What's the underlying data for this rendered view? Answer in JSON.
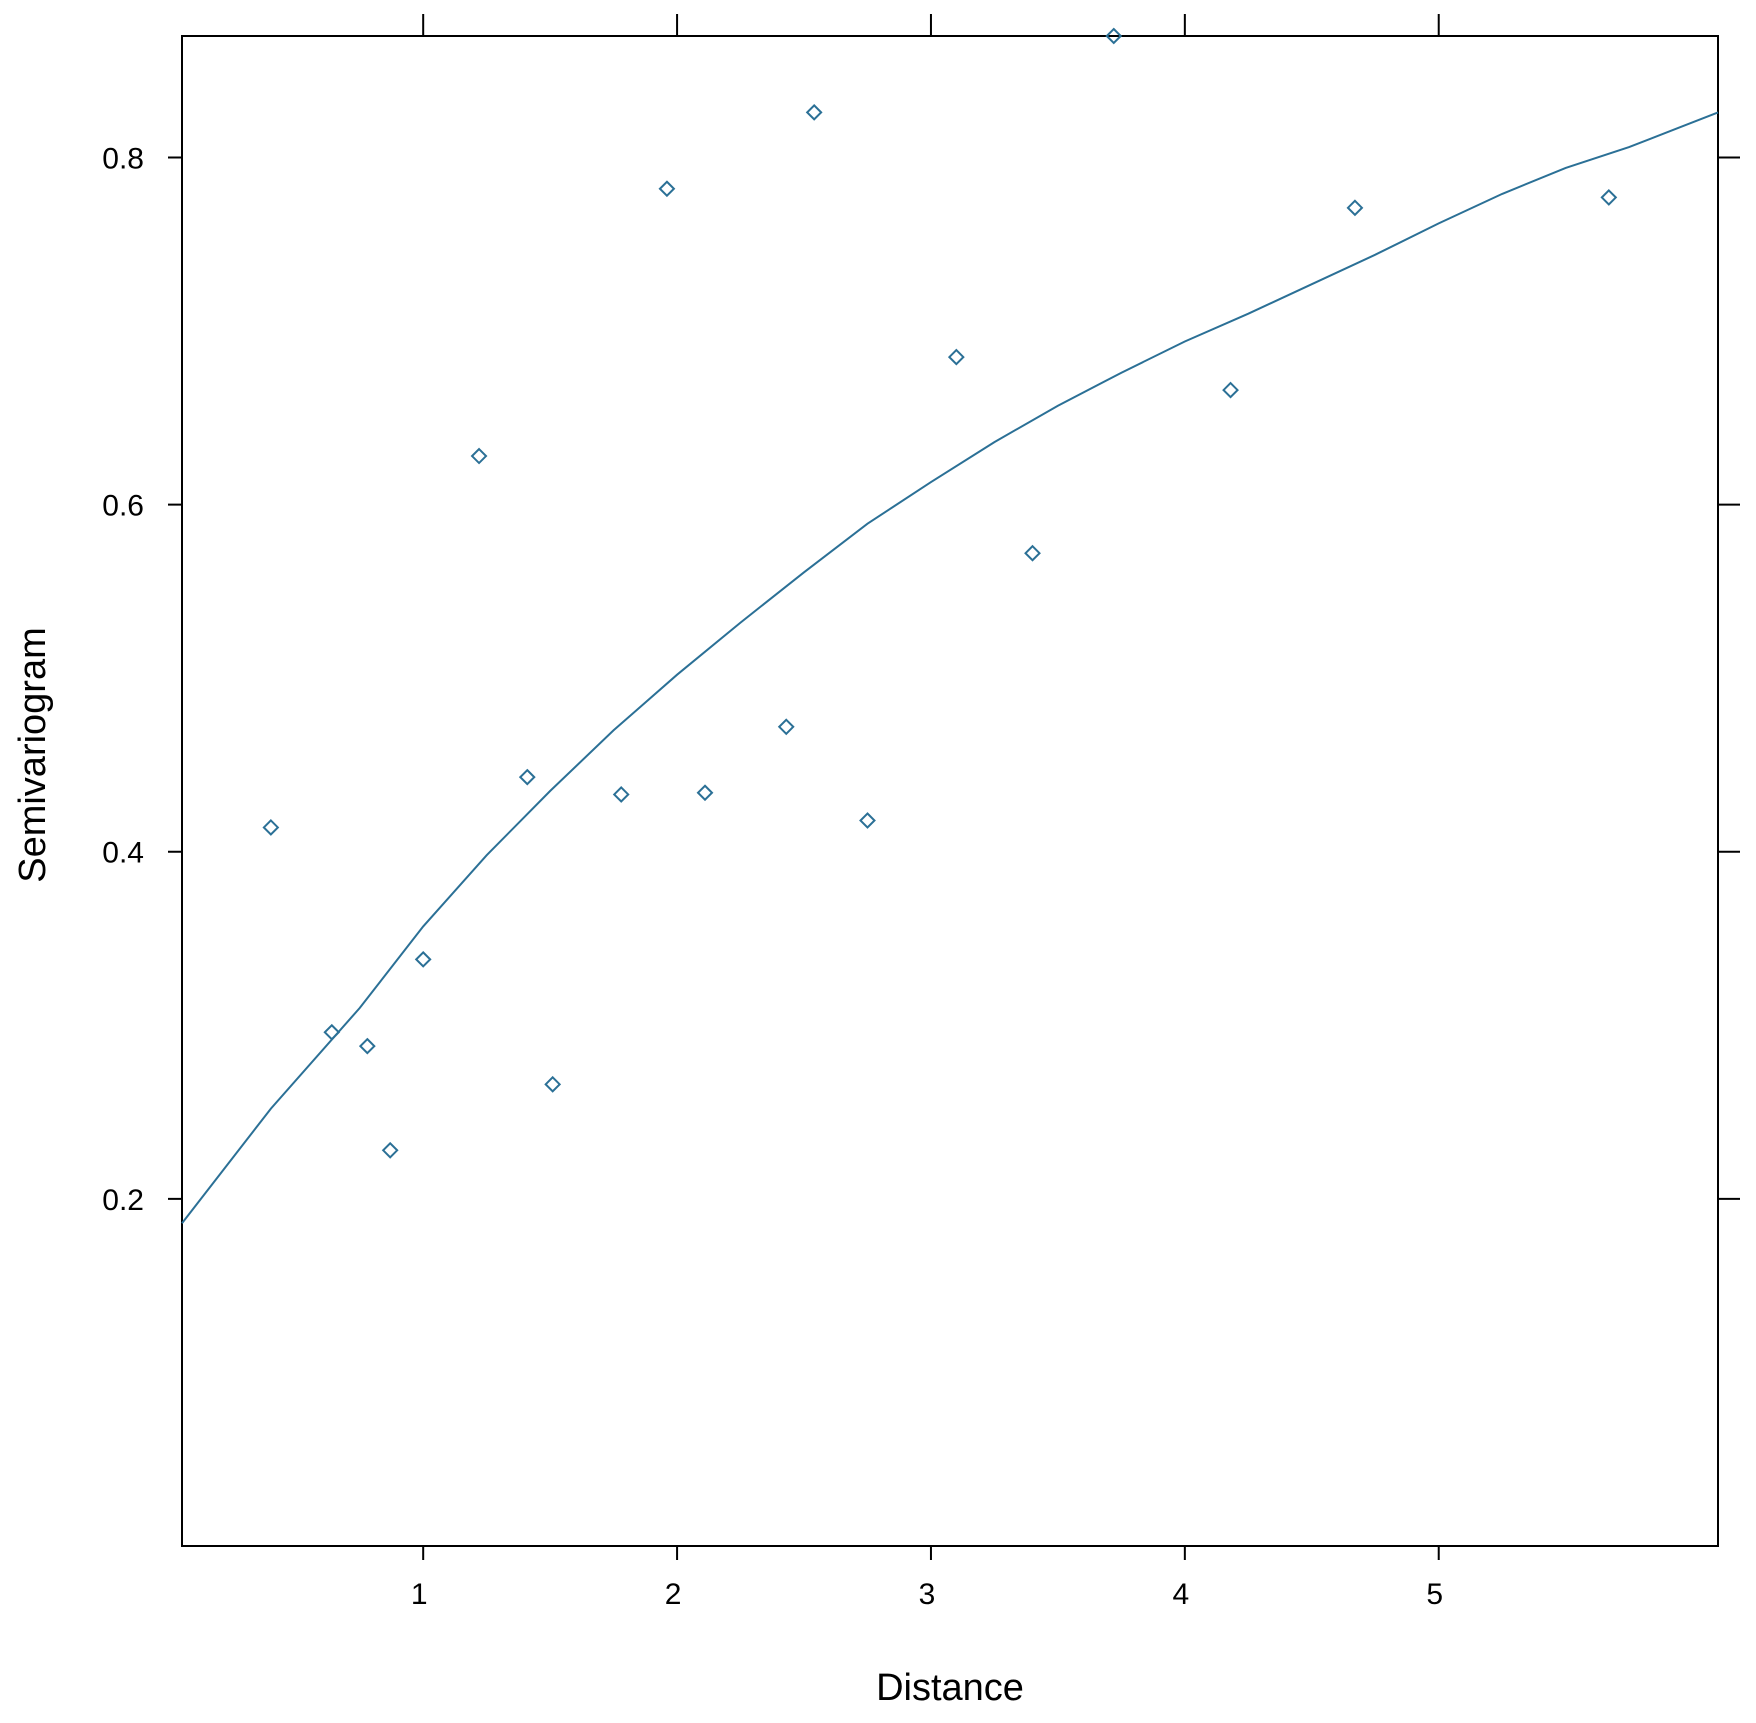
{
  "chart_data": {
    "type": "scatter",
    "xlabel": "Distance",
    "ylabel": "Semivariogram",
    "xlim": [
      0.05,
      6.1
    ],
    "ylim": [
      0.0,
      0.87
    ],
    "xticks": [
      1,
      2,
      3,
      4,
      5
    ],
    "xtick_labels": [
      "1",
      "2",
      "3",
      "4",
      "5"
    ],
    "yticks": [
      0.2,
      0.4,
      0.6,
      0.8
    ],
    "ytick_labels": [
      "0.2",
      "0.4",
      "0.6",
      "0.8"
    ],
    "grid": false,
    "colors": {
      "series": "#2b7096",
      "axis": "#000000"
    },
    "points": [
      {
        "x": 0.4,
        "y": 0.414
      },
      {
        "x": 0.64,
        "y": 0.296
      },
      {
        "x": 0.78,
        "y": 0.288
      },
      {
        "x": 0.87,
        "y": 0.228
      },
      {
        "x": 1.0,
        "y": 0.338
      },
      {
        "x": 1.22,
        "y": 0.628
      },
      {
        "x": 1.41,
        "y": 0.443
      },
      {
        "x": 1.51,
        "y": 0.266
      },
      {
        "x": 1.78,
        "y": 0.433
      },
      {
        "x": 1.96,
        "y": 0.782
      },
      {
        "x": 2.11,
        "y": 0.434
      },
      {
        "x": 2.43,
        "y": 0.472
      },
      {
        "x": 2.54,
        "y": 0.826
      },
      {
        "x": 2.75,
        "y": 0.418
      },
      {
        "x": 3.1,
        "y": 0.685
      },
      {
        "x": 3.4,
        "y": 0.572
      },
      {
        "x": 3.72,
        "y": 0.87
      },
      {
        "x": 4.18,
        "y": 0.666
      },
      {
        "x": 4.67,
        "y": 0.771
      },
      {
        "x": 5.67,
        "y": 0.777
      }
    ],
    "fitted_curve": {
      "x": [
        0.05,
        0.4,
        0.75,
        1.0,
        1.25,
        1.5,
        1.75,
        2.0,
        2.25,
        2.5,
        2.75,
        3.0,
        3.25,
        3.5,
        3.75,
        4.0,
        4.25,
        4.5,
        4.75,
        5.0,
        5.25,
        5.5,
        5.75,
        6.1
      ],
      "y": [
        0.186,
        0.252,
        0.31,
        0.357,
        0.398,
        0.435,
        0.47,
        0.502,
        0.532,
        0.561,
        0.589,
        0.613,
        0.636,
        0.657,
        0.676,
        0.694,
        0.71,
        0.727,
        0.744,
        0.762,
        0.779,
        0.794,
        0.806,
        0.826
      ]
    }
  }
}
